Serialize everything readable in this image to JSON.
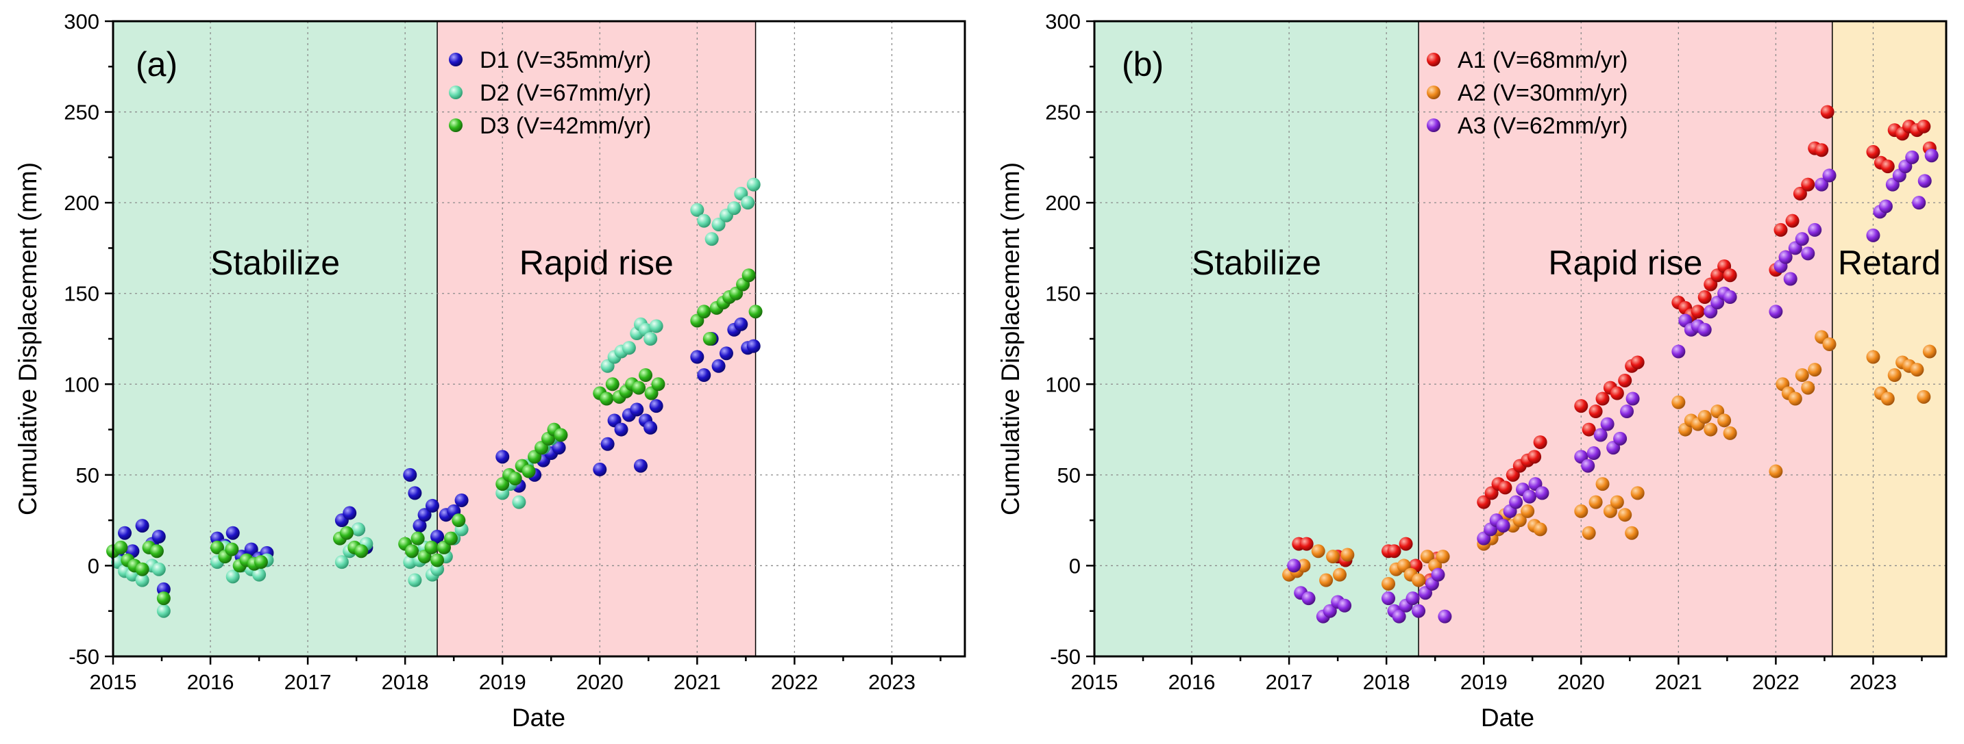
{
  "figure": {
    "xlabel": "Date",
    "ylabel": "Cumulative Displacement (mm)",
    "colors": {
      "stabilize": "#cdeedc",
      "rapid": "#fdd4d6",
      "retard": "#fdebc3",
      "D1": "#1f14c9",
      "D2": "#66ddb0",
      "D3": "#2fb81a",
      "A1": "#e81412",
      "A2": "#f08a1c",
      "A3": "#8a2be2"
    }
  },
  "chart_data": [
    {
      "type": "scatter",
      "panel_label": "(a)",
      "title": "",
      "xlabel": "Date",
      "ylabel": "Cumulative Displacement (mm)",
      "xlim": [
        2015,
        2023.75
      ],
      "ylim": [
        -50,
        300
      ],
      "x_ticks": [
        2015,
        2016,
        2017,
        2018,
        2019,
        2020,
        2021,
        2022,
        2023
      ],
      "y_ticks": [
        -50,
        0,
        50,
        100,
        150,
        200,
        250,
        300
      ],
      "legend_position": "top-center",
      "grid": true,
      "phases": [
        {
          "label": "Stabilize",
          "start": 2015,
          "end": 2018.33,
          "color": "#cdeedc"
        },
        {
          "label": "Rapid rise",
          "start": 2018.33,
          "end": 2021.6,
          "color": "#fdd4d6"
        }
      ],
      "series": [
        {
          "name": "D1 (V=35mm/yr)",
          "color": "#1f14c9",
          "x": [
            2015.05,
            2015.12,
            2015.2,
            2015.3,
            2015.4,
            2015.47,
            2015.52,
            2016.07,
            2016.15,
            2016.23,
            2016.32,
            2016.42,
            2016.5,
            2016.58,
            2017.35,
            2017.43,
            2017.52,
            2017.6,
            2018.05,
            2018.1,
            2018.15,
            2018.2,
            2018.28,
            2018.33,
            2018.42,
            2018.5,
            2018.58,
            2019.0,
            2019.08,
            2019.17,
            2019.25,
            2019.33,
            2019.42,
            2019.5,
            2019.58,
            2020.0,
            2020.08,
            2020.15,
            2020.22,
            2020.3,
            2020.38,
            2020.42,
            2020.47,
            2020.52,
            2020.58,
            2021.0,
            2021.07,
            2021.15,
            2021.22,
            2021.3,
            2021.38,
            2021.45,
            2021.52,
            2021.58
          ],
          "y": [
            5,
            18,
            8,
            22,
            12,
            16,
            -13,
            15,
            11,
            18,
            5,
            9,
            4,
            7,
            25,
            29,
            20,
            10,
            50,
            40,
            22,
            28,
            33,
            16,
            28,
            30,
            36,
            60,
            48,
            44,
            55,
            50,
            58,
            62,
            65,
            53,
            67,
            80,
            75,
            83,
            86,
            55,
            80,
            76,
            88,
            115,
            105,
            125,
            110,
            117,
            130,
            133,
            120,
            121
          ]
        },
        {
          "name": "D2 (V=67mm/yr)",
          "color": "#66ddb0",
          "x": [
            2015.05,
            2015.12,
            2015.2,
            2015.3,
            2015.4,
            2015.47,
            2015.52,
            2016.07,
            2016.15,
            2016.23,
            2016.32,
            2016.42,
            2016.5,
            2016.58,
            2017.35,
            2017.43,
            2017.52,
            2017.6,
            2018.05,
            2018.1,
            2018.15,
            2018.2,
            2018.28,
            2018.33,
            2018.42,
            2018.5,
            2018.58,
            2019.0,
            2019.08,
            2019.17,
            2019.25,
            2019.33,
            2019.42,
            2019.5,
            2019.58,
            2020.0,
            2020.08,
            2020.15,
            2020.22,
            2020.3,
            2020.38,
            2020.42,
            2020.47,
            2020.52,
            2020.58,
            2021.0,
            2021.07,
            2021.15,
            2021.22,
            2021.3,
            2021.38,
            2021.45,
            2021.52,
            2021.58
          ],
          "y": [
            2,
            -3,
            -5,
            -8,
            0,
            -2,
            -25,
            2,
            10,
            -6,
            0,
            -2,
            -5,
            3,
            2,
            8,
            20,
            12,
            2,
            -8,
            3,
            10,
            -5,
            -2,
            5,
            15,
            20,
            40,
            45,
            35,
            55,
            60,
            65,
            70,
            72,
            95,
            110,
            115,
            118,
            120,
            128,
            133,
            130,
            125,
            132,
            196,
            190,
            180,
            188,
            193,
            197,
            205,
            200,
            210
          ]
        },
        {
          "name": "D3 (V=42mm/yr)",
          "color": "#2fb81a",
          "x": [
            2015.0,
            2015.08,
            2015.15,
            2015.22,
            2015.3,
            2015.37,
            2015.45,
            2015.52,
            2016.07,
            2016.15,
            2016.22,
            2016.3,
            2016.37,
            2016.45,
            2016.52,
            2017.33,
            2017.4,
            2017.48,
            2017.55,
            2018.0,
            2018.07,
            2018.13,
            2018.2,
            2018.27,
            2018.33,
            2018.4,
            2018.47,
            2018.55,
            2019.0,
            2019.07,
            2019.13,
            2019.2,
            2019.27,
            2019.33,
            2019.4,
            2019.47,
            2019.53,
            2019.6,
            2020.0,
            2020.07,
            2020.13,
            2020.2,
            2020.27,
            2020.33,
            2020.4,
            2020.47,
            2020.53,
            2020.6,
            2021.0,
            2021.07,
            2021.13,
            2021.2,
            2021.27,
            2021.33,
            2021.4,
            2021.47,
            2021.53,
            2021.6
          ],
          "y": [
            8,
            10,
            3,
            0,
            -2,
            10,
            8,
            -18,
            10,
            5,
            9,
            0,
            3,
            1,
            2,
            15,
            18,
            10,
            8,
            12,
            8,
            15,
            5,
            10,
            3,
            10,
            15,
            25,
            45,
            50,
            48,
            55,
            52,
            60,
            65,
            70,
            75,
            72,
            95,
            92,
            100,
            93,
            96,
            100,
            98,
            105,
            95,
            100,
            135,
            140,
            125,
            142,
            145,
            148,
            150,
            155,
            160,
            140
          ]
        }
      ]
    },
    {
      "type": "scatter",
      "panel_label": "(b)",
      "title": "",
      "xlabel": "Date",
      "ylabel": "Cumulative Displacement (mm)",
      "xlim": [
        2015,
        2023.75
      ],
      "ylim": [
        -50,
        300
      ],
      "x_ticks": [
        2015,
        2016,
        2017,
        2018,
        2019,
        2020,
        2021,
        2022,
        2023
      ],
      "y_ticks": [
        -50,
        0,
        50,
        100,
        150,
        200,
        250,
        300
      ],
      "legend_position": "top-center",
      "grid": true,
      "phases": [
        {
          "label": "Stabilize",
          "start": 2015,
          "end": 2018.33,
          "color": "#cdeedc"
        },
        {
          "label": "Rapid rise",
          "start": 2018.33,
          "end": 2022.58,
          "color": "#fdd4d6"
        },
        {
          "label": "Retard",
          "start": 2022.58,
          "end": 2023.75,
          "color": "#fdebc3"
        }
      ],
      "series": [
        {
          "name": "A1 (V=68mm/yr)",
          "color": "#e81412",
          "x": [
            2017.1,
            2017.18,
            2017.5,
            2017.58,
            2018.02,
            2018.08,
            2018.2,
            2018.3,
            2018.45,
            2018.52,
            2019.0,
            2019.08,
            2019.15,
            2019.22,
            2019.3,
            2019.37,
            2019.45,
            2019.52,
            2019.58,
            2020.0,
            2020.08,
            2020.15,
            2020.22,
            2020.3,
            2020.37,
            2020.45,
            2020.52,
            2020.58,
            2021.0,
            2021.07,
            2021.13,
            2021.2,
            2021.27,
            2021.33,
            2021.4,
            2021.47,
            2021.53,
            2022.0,
            2022.05,
            2022.1,
            2022.17,
            2022.25,
            2022.33,
            2022.4,
            2022.47,
            2022.53,
            2023.0,
            2023.08,
            2023.15,
            2023.22,
            2023.3,
            2023.37,
            2023.45,
            2023.52,
            2023.58
          ],
          "y": [
            12,
            12,
            5,
            3,
            8,
            8,
            12,
            0,
            -8,
            4,
            35,
            40,
            45,
            43,
            50,
            55,
            58,
            60,
            68,
            88,
            75,
            85,
            92,
            98,
            95,
            102,
            110,
            112,
            145,
            142,
            138,
            140,
            148,
            155,
            160,
            165,
            160,
            163,
            185,
            170,
            190,
            205,
            210,
            230,
            229,
            250,
            228,
            222,
            220,
            240,
            238,
            242,
            240,
            242,
            230
          ]
        },
        {
          "name": "A2 (V=30mm/yr)",
          "color": "#f08a1c",
          "x": [
            2017.0,
            2017.08,
            2017.15,
            2017.3,
            2017.38,
            2017.45,
            2017.52,
            2017.6,
            2018.02,
            2018.1,
            2018.18,
            2018.25,
            2018.33,
            2018.42,
            2018.5,
            2018.58,
            2019.0,
            2019.08,
            2019.15,
            2019.22,
            2019.3,
            2019.37,
            2019.45,
            2019.52,
            2019.58,
            2020.0,
            2020.08,
            2020.15,
            2020.22,
            2020.3,
            2020.37,
            2020.45,
            2020.52,
            2020.58,
            2021.0,
            2021.07,
            2021.13,
            2021.2,
            2021.27,
            2021.33,
            2021.4,
            2021.47,
            2021.53,
            2022.0,
            2022.07,
            2022.13,
            2022.2,
            2022.27,
            2022.33,
            2022.4,
            2022.47,
            2022.55,
            2023.0,
            2023.08,
            2023.15,
            2023.22,
            2023.3,
            2023.37,
            2023.45,
            2023.52,
            2023.58
          ],
          "y": [
            -5,
            -3,
            0,
            8,
            -8,
            5,
            -5,
            6,
            -10,
            -2,
            0,
            -5,
            -8,
            5,
            0,
            5,
            12,
            15,
            20,
            28,
            22,
            25,
            30,
            22,
            20,
            30,
            18,
            35,
            45,
            30,
            35,
            28,
            18,
            40,
            90,
            75,
            80,
            78,
            82,
            75,
            85,
            80,
            73,
            52,
            100,
            95,
            92,
            105,
            98,
            108,
            126,
            122,
            115,
            95,
            92,
            105,
            112,
            110,
            108,
            93,
            118
          ]
        },
        {
          "name": "A3 (V=62mm/yr)",
          "color": "#8a2be2",
          "x": [
            2017.05,
            2017.12,
            2017.2,
            2017.35,
            2017.42,
            2017.5,
            2017.57,
            2018.02,
            2018.08,
            2018.13,
            2018.2,
            2018.27,
            2018.33,
            2018.4,
            2018.47,
            2018.53,
            2018.6,
            2019.0,
            2019.07,
            2019.13,
            2019.2,
            2019.27,
            2019.33,
            2019.4,
            2019.47,
            2019.53,
            2019.6,
            2020.0,
            2020.07,
            2020.13,
            2020.2,
            2020.27,
            2020.33,
            2020.4,
            2020.47,
            2020.53,
            2021.0,
            2021.07,
            2021.13,
            2021.2,
            2021.27,
            2021.33,
            2021.4,
            2021.47,
            2021.53,
            2022.0,
            2022.05,
            2022.1,
            2022.15,
            2022.2,
            2022.27,
            2022.33,
            2022.4,
            2022.47,
            2022.55,
            2023.0,
            2023.07,
            2023.13,
            2023.2,
            2023.27,
            2023.33,
            2023.4,
            2023.47,
            2023.53,
            2023.6
          ],
          "y": [
            0,
            -15,
            -18,
            -28,
            -25,
            -20,
            -22,
            -18,
            -25,
            -28,
            -22,
            -18,
            -25,
            -15,
            -10,
            -5,
            -28,
            15,
            20,
            25,
            22,
            30,
            35,
            42,
            38,
            45,
            40,
            60,
            55,
            62,
            72,
            78,
            65,
            70,
            85,
            92,
            118,
            135,
            130,
            132,
            130,
            140,
            145,
            150,
            148,
            140,
            165,
            170,
            158,
            175,
            180,
            172,
            185,
            210,
            215,
            182,
            195,
            198,
            210,
            215,
            220,
            225,
            200,
            212,
            226
          ]
        }
      ]
    }
  ]
}
